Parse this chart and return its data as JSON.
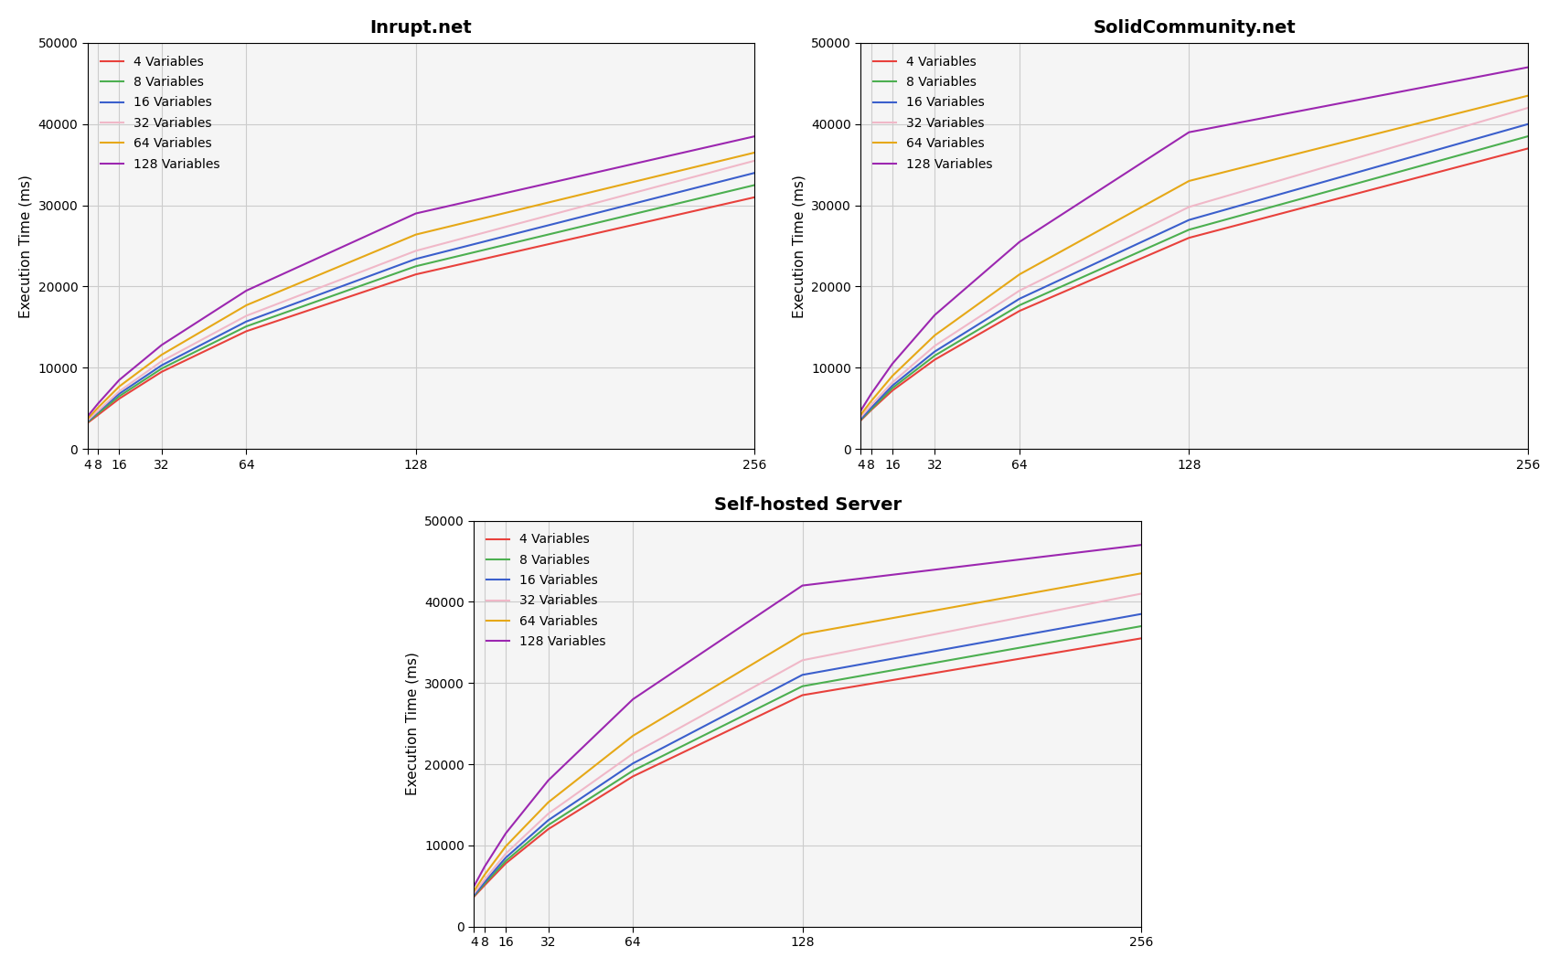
{
  "titles": [
    "Inrupt.net",
    "SolidCommunity.net",
    "Self-hosted Server"
  ],
  "ylabel": "Execution Time (ms)",
  "x_pods": [
    4,
    8,
    16,
    32,
    64,
    128,
    256
  ],
  "x_ticks": [
    4,
    8,
    16,
    32,
    64,
    128,
    256
  ],
  "x_tick_labels": [
    "4",
    "8",
    "16",
    "32",
    "64",
    "128",
    "256"
  ],
  "ylim": [
    0,
    50000
  ],
  "yticks": [
    0,
    10000,
    20000,
    30000,
    40000,
    50000
  ],
  "legend_labels": [
    "4 Variables",
    "8 Variables",
    "16 Variables",
    "32 Variables",
    "64 Variables",
    "128 Variables"
  ],
  "line_colors": [
    "#e8413c",
    "#4caf50",
    "#3b5fcc",
    "#f0b8c8",
    "#e6a817",
    "#9c27b0"
  ],
  "inrupt_data": [
    [
      3200,
      4200,
      6200,
      9500,
      14500,
      21500,
      31000
    ],
    [
      3300,
      4400,
      6500,
      9900,
      15100,
      22500,
      32500
    ],
    [
      3400,
      4600,
      6800,
      10300,
      15700,
      23400,
      34000
    ],
    [
      3500,
      4700,
      7100,
      10800,
      16400,
      24400,
      35500
    ],
    [
      3700,
      5100,
      7700,
      11600,
      17700,
      26400,
      36500
    ],
    [
      4000,
      5600,
      8500,
      12800,
      19500,
      29000,
      38500
    ]
  ],
  "solidcommunity_data": [
    [
      3500,
      4800,
      7200,
      11000,
      17000,
      26000,
      37000
    ],
    [
      3600,
      4900,
      7500,
      11500,
      17700,
      27000,
      38500
    ],
    [
      3700,
      5100,
      7800,
      12000,
      18500,
      28200,
      40000
    ],
    [
      3900,
      5400,
      8200,
      12700,
      19500,
      29800,
      42000
    ],
    [
      4200,
      5900,
      9000,
      14000,
      21500,
      33000,
      43500
    ],
    [
      4700,
      6800,
      10500,
      16500,
      25500,
      39000,
      47000
    ]
  ],
  "selfhosted_data": [
    [
      3700,
      5100,
      7800,
      12000,
      18500,
      28500,
      35500
    ],
    [
      3800,
      5300,
      8100,
      12500,
      19200,
      29600,
      37000
    ],
    [
      3900,
      5500,
      8500,
      13100,
      20100,
      31000,
      38500
    ],
    [
      4100,
      5800,
      9000,
      13900,
      21300,
      32800,
      41000
    ],
    [
      4400,
      6400,
      9900,
      15300,
      23500,
      36000,
      43500
    ],
    [
      5000,
      7400,
      11500,
      18000,
      28000,
      42000,
      47000
    ]
  ],
  "bg_color": "#f5f5f5",
  "grid_color": "#cccccc",
  "linewidth": 1.5,
  "title_fontsize": 14,
  "label_fontsize": 11,
  "tick_fontsize": 10,
  "legend_fontsize": 10
}
